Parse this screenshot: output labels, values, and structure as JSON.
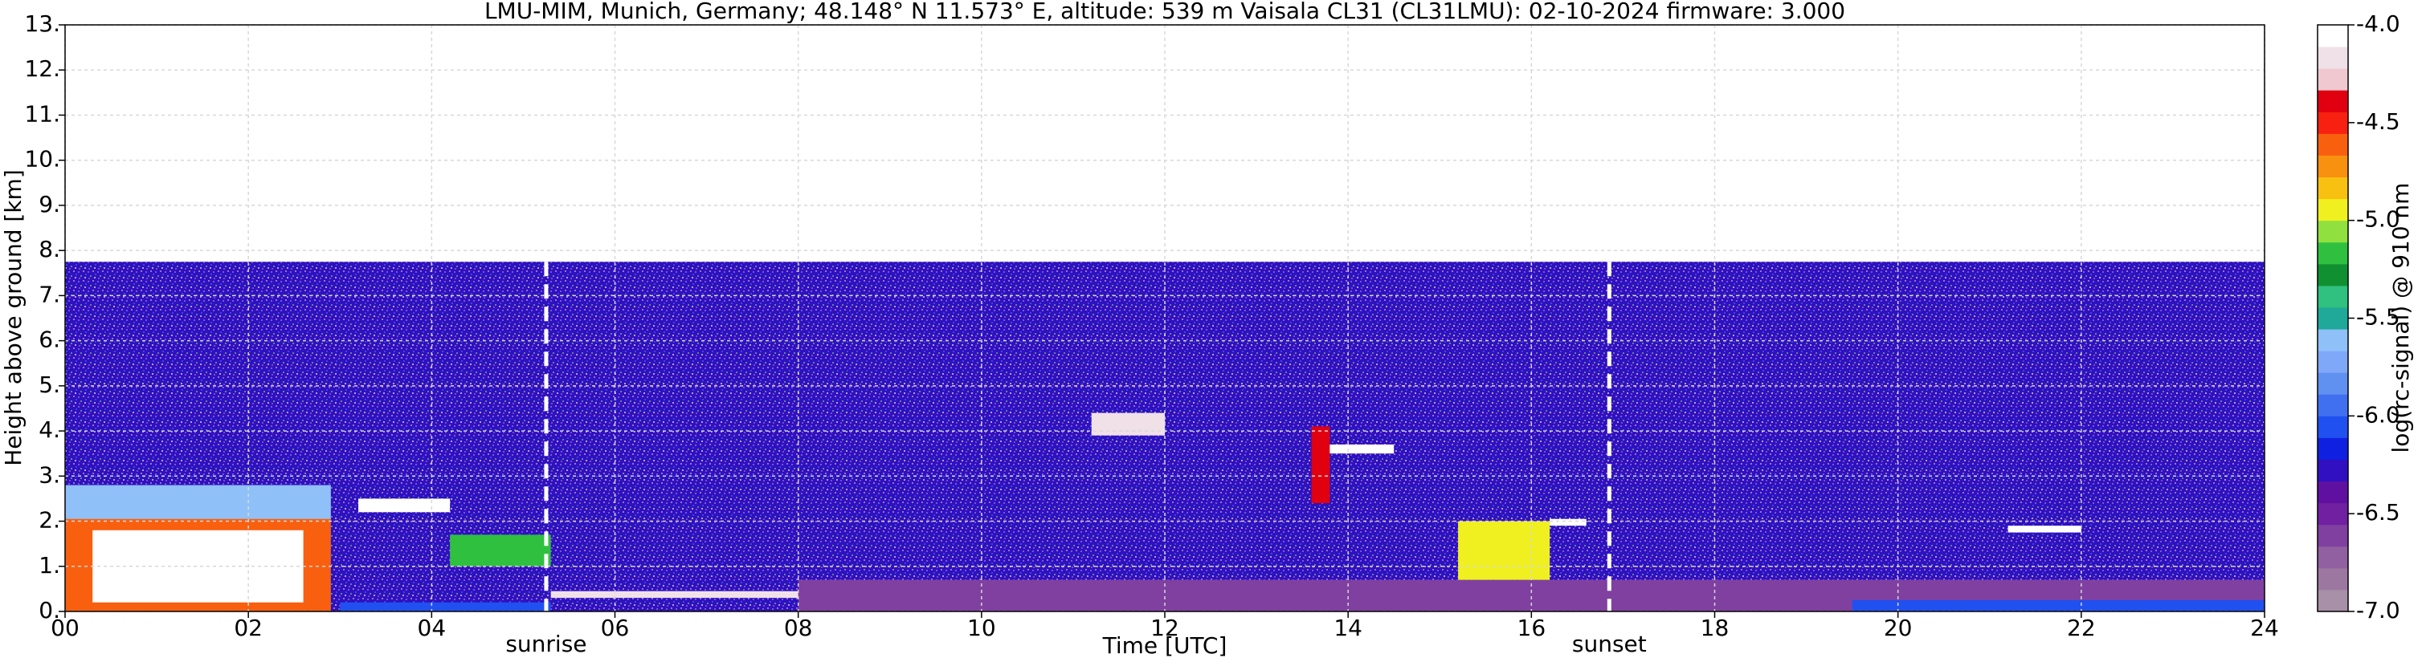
{
  "chart_data": {
    "type": "heatmap",
    "title": "LMU-MIM, Munich, Germany; 48.148° N 11.573° E, altitude: 539 m    Vaisala CL31 (CL31LMU): 02-10-2024    firmware: 3.000",
    "x_label": "Time [UTC]",
    "y_label": "Height above ground [km]",
    "colorbar_label": "log(rc-signal) @ 910 nm",
    "xlim": [
      0,
      24
    ],
    "xticks": [
      {
        "value": 0,
        "label": "00"
      },
      {
        "value": 2,
        "label": "02"
      },
      {
        "value": 4,
        "label": "04"
      },
      {
        "value": 6,
        "label": "06"
      },
      {
        "value": 8,
        "label": "08"
      },
      10,
      12,
      14,
      16,
      18,
      20,
      22,
      24
    ],
    "ylim": [
      0,
      13
    ],
    "yticks": [
      {
        "value": 0,
        "label": "0."
      },
      {
        "value": 1,
        "label": "1."
      },
      {
        "value": 2,
        "label": "2."
      },
      {
        "value": 3,
        "label": "3."
      },
      {
        "value": 4,
        "label": "4."
      },
      {
        "value": 5,
        "label": "5."
      },
      {
        "value": 6,
        "label": "6."
      },
      {
        "value": 7,
        "label": "7."
      },
      {
        "value": 8,
        "label": "8."
      },
      {
        "value": 9,
        "label": "9."
      },
      {
        "value": 10,
        "label": "10."
      },
      {
        "value": 11,
        "label": "11."
      },
      {
        "value": 12,
        "label": "12."
      },
      {
        "value": 13,
        "label": "13."
      }
    ],
    "clim": [
      -7,
      -4
    ],
    "cticks": [
      {
        "value": -4,
        "label": "-4.0"
      },
      -4.5,
      {
        "value": -5,
        "label": "-5.0"
      },
      -5.5,
      {
        "value": -6,
        "label": "-6.0"
      },
      -6.5,
      {
        "value": -7,
        "label": "-7.0"
      }
    ],
    "colormap": [
      "#a890a8",
      "#9c78a0",
      "#9060a0",
      "#8040a0",
      "#7020a0",
      "#6010a0",
      "#3010c0",
      "#1020e0",
      "#2050f0",
      "#4070f0",
      "#6090f0",
      "#80a8f8",
      "#90c0f8",
      "#20a898",
      "#30c080",
      "#109030",
      "#30c040",
      "#90e040",
      "#f0f020",
      "#f8c010",
      "#f89010",
      "#f86010",
      "#f82010",
      "#e00010",
      "#f0c8d0",
      "#f0e0e8",
      "#ffffff"
    ],
    "grid": true,
    "signal_top": 7.75,
    "noise_value": -6.3,
    "features": [
      {
        "time": [
          0,
          2.9
        ],
        "height": [
          2.0,
          2.8
        ],
        "value": -5.6
      },
      {
        "time": [
          0,
          2.9
        ],
        "height": [
          0,
          2.05
        ],
        "value": -4.6
      },
      {
        "time": [
          0.3,
          2.6
        ],
        "height": [
          0.2,
          1.8
        ],
        "value": -4.1
      },
      {
        "time": [
          3.0,
          5.3
        ],
        "height": [
          0,
          0.2
        ],
        "value": -6.1
      },
      {
        "time": [
          3.2,
          4.2
        ],
        "height": [
          2.2,
          2.5
        ],
        "value": -4.1
      },
      {
        "time": [
          4.2,
          5.3
        ],
        "height": [
          1.0,
          1.7
        ],
        "value": -5.2
      },
      {
        "time": [
          5.3,
          8.0
        ],
        "height": [
          0.3,
          0.45
        ],
        "value": -4.2
      },
      {
        "time": [
          8.0,
          24
        ],
        "height": [
          0,
          0.7
        ],
        "value": -6.6
      },
      {
        "time": [
          11.2,
          12.0
        ],
        "height": [
          3.9,
          4.4
        ],
        "value": -4.2
      },
      {
        "time": [
          13.6,
          13.8
        ],
        "height": [
          2.4,
          4.1
        ],
        "value": -4.4
      },
      {
        "time": [
          13.8,
          14.5
        ],
        "height": [
          3.5,
          3.7
        ],
        "value": -4.1
      },
      {
        "time": [
          15.2,
          16.2
        ],
        "height": [
          0.7,
          2.0
        ],
        "value": -5.0
      },
      {
        "time": [
          16.2,
          16.6
        ],
        "height": [
          1.9,
          2.05
        ],
        "value": -4.1
      },
      {
        "time": [
          19.5,
          24
        ],
        "height": [
          0,
          0.25
        ],
        "value": -6.1
      },
      {
        "time": [
          21.2,
          22.0
        ],
        "height": [
          1.75,
          1.9
        ],
        "value": -4.1
      }
    ],
    "annotations": [
      {
        "text": "sunrise",
        "x": 5.25
      },
      {
        "text": "sunset",
        "x": 16.85
      }
    ]
  }
}
